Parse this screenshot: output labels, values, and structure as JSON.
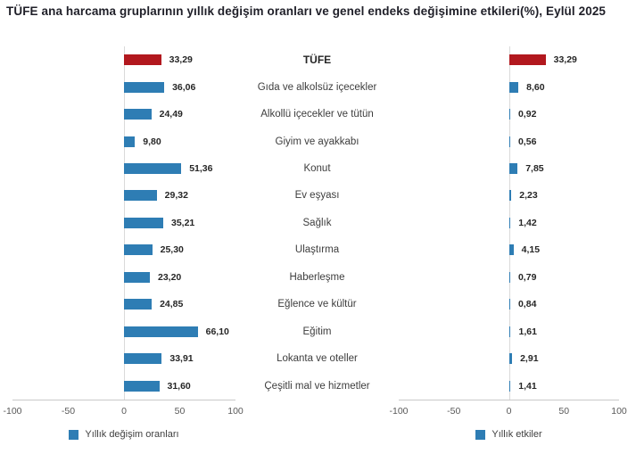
{
  "title": "TÜFE ana harcama gruplarının yıllık değişim oranları ve genel endeks değişimine etkileri(%), Eylül 2025",
  "chart_data": {
    "type": "bar",
    "orientation": "horizontal",
    "categories": [
      "TÜFE",
      "Gıda ve alkolsüz içecekler",
      "Alkollü içecekler ve tütün",
      "Giyim ve ayakkabı",
      "Konut",
      "Ev eşyası",
      "Sağlık",
      "Ulaştırma",
      "Haberleşme",
      "Eğlence ve kültür",
      "Eğitim",
      "Lokanta ve oteller",
      "Çeşitli mal ve hizmetler"
    ],
    "series": [
      {
        "name": "Yıllık değişim oranları",
        "values": [
          33.29,
          36.06,
          24.49,
          9.8,
          51.36,
          29.32,
          35.21,
          25.3,
          23.2,
          24.85,
          66.1,
          33.91,
          31.6
        ]
      },
      {
        "name": "Yıllık etkiler",
        "values": [
          33.29,
          8.6,
          0.92,
          0.56,
          7.85,
          2.23,
          1.42,
          4.15,
          0.79,
          0.84,
          1.61,
          2.91,
          1.41
        ]
      }
    ],
    "value_label_format": "comma-decimal-2",
    "xlim": [
      -100,
      100
    ],
    "ticks": [
      -100,
      -50,
      0,
      50,
      100
    ],
    "grid": false,
    "legend_position": "bottom-center-per-panel",
    "colors": {
      "tufe_bar": "#b2181e",
      "bar": "#2e7db4",
      "axis_line": "#c9c9c9",
      "zero_line": "#dadada",
      "tick_text": "#595959"
    }
  }
}
